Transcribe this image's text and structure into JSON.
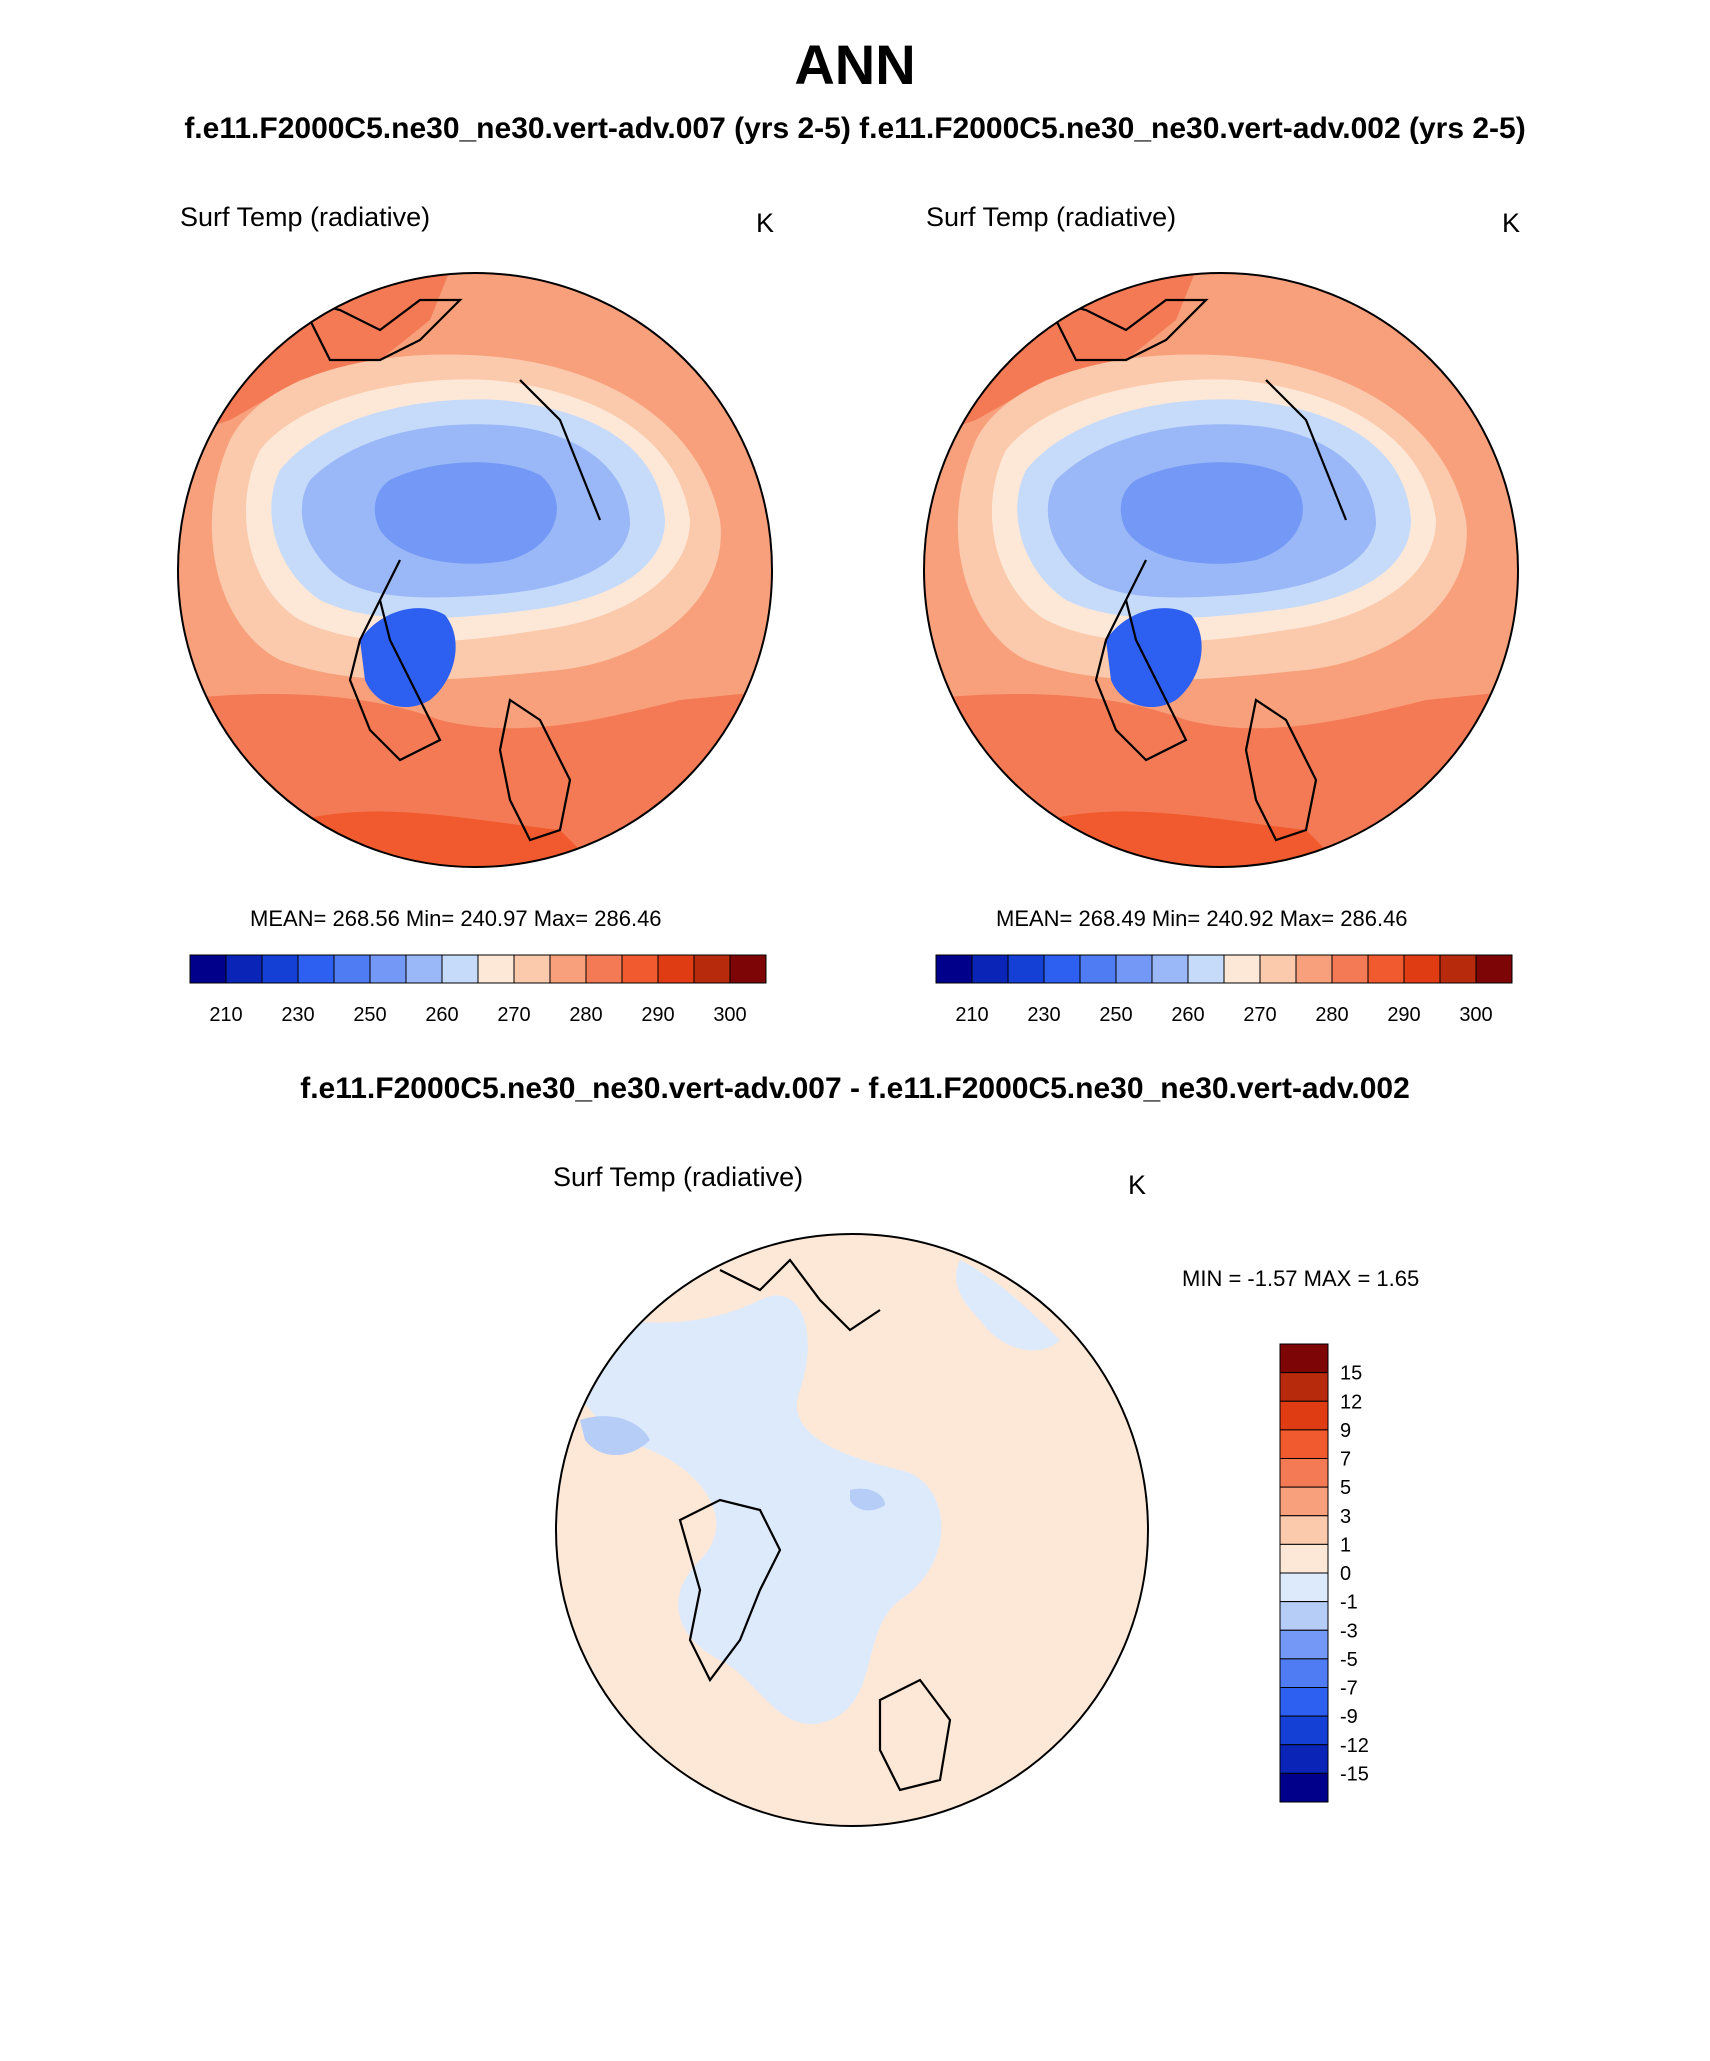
{
  "main_title": "ANN",
  "cases_title": "f.e11.F2000C5.ne30_ne30.vert-adv.007 (yrs 2-5)  f.e11.F2000C5.ne30_ne30.vert-adv.002 (yrs 2-5)",
  "diff_title": "f.e11.F2000C5.ne30_ne30.vert-adv.007 - f.e11.F2000C5.ne30_ne30.vert-adv.002",
  "panels": [
    {
      "variable": "Surf Temp (radiative)",
      "units": "K",
      "stats": "MEAN= 268.56  Min= 240.97  Max= 286.46"
    },
    {
      "variable": "Surf Temp (radiative)",
      "units": "K",
      "stats": "MEAN= 268.49  Min= 240.92  Max= 286.46"
    },
    {
      "variable": "Surf Temp (radiative)",
      "units": "K",
      "stats": "MIN =  -1.57 MAX =   1.65"
    }
  ],
  "abs_colorbar": {
    "colors": [
      "#00008b",
      "#0a24b8",
      "#1440d6",
      "#2d5ff0",
      "#4f7cf2",
      "#7398f5",
      "#9ab8f7",
      "#c6dbfa",
      "#fde8d7",
      "#fbc9ab",
      "#f8a07c",
      "#f47a55",
      "#f05a2e",
      "#e03c14",
      "#b82a0c",
      "#7e0505"
    ],
    "ticks": [
      "210",
      "230",
      "250",
      "260",
      "270",
      "280",
      "290",
      "300"
    ]
  },
  "diff_colorbar": {
    "colors": [
      "#7e0505",
      "#b82a0c",
      "#e03c14",
      "#f05a2e",
      "#f47a55",
      "#f8a07c",
      "#fbc9ab",
      "#fde8d7",
      "#ddeafc",
      "#b6cdf8",
      "#7398f5",
      "#4f7cf2",
      "#2d5ff0",
      "#1440d6",
      "#0a24b8",
      "#00008b"
    ],
    "ticks": [
      "15",
      "12",
      "9",
      "7",
      "5",
      "3",
      "1",
      "0",
      "-1",
      "-3",
      "-5",
      "-7",
      "-9",
      "-12",
      "-15"
    ]
  }
}
